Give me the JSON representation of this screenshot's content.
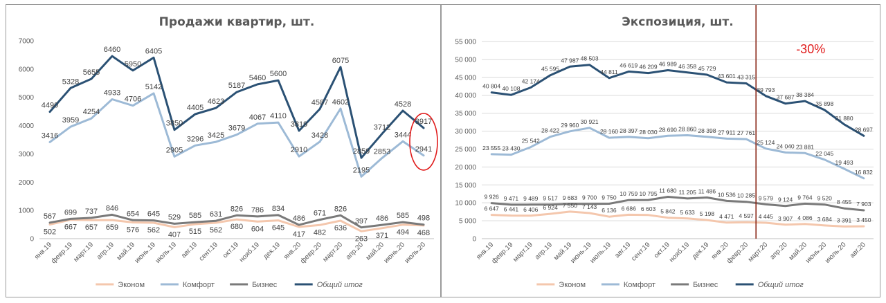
{
  "chart_data": [
    {
      "type": "line",
      "title": "Продажи квартир, шт.",
      "categories": [
        "янв.19",
        "февр.19",
        "март.19",
        "апр.19",
        "май.19",
        "июнь.19",
        "июль.19",
        "авг.19",
        "сент.19",
        "окт.19",
        "нояб.19",
        "дек.19",
        "янв.20",
        "февр.20",
        "март.20",
        "апр.20",
        "май.20",
        "июнь.20",
        "июль.20"
      ],
      "ylim": [
        0,
        7000
      ],
      "yticks": [
        "0",
        "1000",
        "2000",
        "3000",
        "4000",
        "5000",
        "6000",
        "7000"
      ],
      "grid": false,
      "legend_position": "bottom",
      "series": [
        {
          "name": "Эконом",
          "color": "#f4c7ad",
          "width": 3,
          "values": [
            502,
            667,
            657,
            659,
            576,
            562,
            407,
            515,
            562,
            680,
            604,
            645,
            417,
            482,
            636,
            263,
            371,
            494,
            468
          ],
          "labels": [
            "502",
            "667",
            "657",
            "659",
            "576",
            "562",
            "407",
            "515",
            "562",
            "680",
            "604",
            "645",
            "417",
            "482",
            "636",
            "263",
            "371",
            "494",
            "468"
          ],
          "label_pos": "below"
        },
        {
          "name": "Комфорт",
          "color": "#9dbad6",
          "width": 3,
          "values": [
            3416,
            3959,
            4254,
            4933,
            4706,
            5142,
            2905,
            3296,
            3425,
            3679,
            4067,
            4110,
            2910,
            3428,
            4602,
            2195,
            2853,
            3444,
            2941
          ],
          "labels": [
            "3416",
            "3959",
            "4254",
            "4933",
            "4706",
            "5142",
            "2905",
            "3296",
            "3425",
            "3679",
            "4067",
            "4110",
            "2910",
            "3428",
            "4602",
            "2195",
            "2853",
            "3444",
            "2941"
          ],
          "label_pos": "above"
        },
        {
          "name": "Бизнес",
          "color": "#7a7a7a",
          "width": 3,
          "values": [
            567,
            699,
            737,
            846,
            654,
            645,
            529,
            585,
            631,
            826,
            786,
            834,
            486,
            671,
            826,
            397,
            486,
            585,
            498
          ],
          "labels": [
            "567",
            "699",
            "737",
            "846",
            "654",
            "645",
            "529",
            "585",
            "631",
            "826",
            "786",
            "834",
            "486",
            "671",
            "826",
            "397",
            "486",
            "585",
            "498"
          ],
          "label_pos": "above"
        },
        {
          "name": "Общий итог",
          "color": "#2b5174",
          "width": 3,
          "values": [
            4490,
            5328,
            5655,
            6460,
            5950,
            6405,
            3850,
            4405,
            4623,
            5187,
            5460,
            5600,
            3819,
            4587,
            6075,
            2859,
            3712,
            4528,
            3917
          ],
          "labels": [
            "4490",
            "5328",
            "5655",
            "6460",
            "5950",
            "6405",
            "3850",
            "4405",
            "4623",
            "5187",
            "5460",
            "5600",
            "3819",
            "4587",
            "6075",
            "2859",
            "3712",
            "4528",
            "3917"
          ],
          "label_pos": "above"
        }
      ],
      "annotations": [
        {
          "shape": "ellipse",
          "category": "июль.20",
          "color": "#e01b1b"
        }
      ]
    },
    {
      "type": "line",
      "title": "Экспозиция, шт.",
      "categories": [
        "янв.19",
        "февр.19",
        "март.19",
        "апр.19",
        "май.19",
        "июнь.19",
        "июль.19",
        "авг.19",
        "сент.19",
        "окт.19",
        "нояб.19",
        "дек.19",
        "янв.20",
        "февр.20",
        "март.20",
        "апр.20",
        "май.20",
        "июнь.20",
        "июль.20",
        "авг.20"
      ],
      "ylim": [
        0,
        55000
      ],
      "yticks": [
        "0",
        "5 000",
        "10 000",
        "15 000",
        "20 000",
        "25 000",
        "30 000",
        "35 000",
        "40 000",
        "45 000",
        "50 000",
        "55 000"
      ],
      "grid": true,
      "legend_position": "bottom",
      "series": [
        {
          "name": "Эконом",
          "color": "#f4c7ad",
          "width": 3,
          "values": [
            6647,
            6441,
            6406,
            6924,
            7550,
            7143,
            6136,
            6686,
            6603,
            5842,
            5633,
            5198,
            4471,
            4597,
            4445,
            3907,
            4086,
            3684,
            3391,
            3450
          ],
          "labels": [
            "6 647",
            "6 441",
            "6 406",
            "6 924",
            "7 550",
            "7 143",
            "6 136",
            "6 686",
            "6 603",
            "5 842",
            "5 633",
            "5 198",
            "4 471",
            "4 597",
            "4 445",
            "3 907",
            "4 086",
            "3 684",
            "3 391",
            "3 450"
          ],
          "label_pos": "above"
        },
        {
          "name": "Комфорт",
          "color": "#9dbad6",
          "width": 3,
          "values": [
            23555,
            23430,
            25542,
            28422,
            29960,
            30921,
            28160,
            28397,
            28030,
            28690,
            28860,
            28398,
            27911,
            27761,
            25124,
            24040,
            23881,
            22045,
            19493,
            16832
          ],
          "labels": [
            "23 555",
            "23 430",
            "25 542",
            "28 422",
            "29 960",
            "30 921",
            "28 160",
            "28 397",
            "28 030",
            "28 690",
            "28 860",
            "28 398",
            "27 911",
            "27 761",
            "25 124",
            "24 040",
            "23 881",
            "22 045",
            "19 493",
            "16 832"
          ],
          "label_pos": "above"
        },
        {
          "name": "Бизнес",
          "color": "#7a7a7a",
          "width": 3,
          "values": [
            9926,
            9471,
            9489,
            9517,
            9683,
            9700,
            9750,
            10759,
            10795,
            11680,
            11205,
            11486,
            10536,
            10285,
            9579,
            9124,
            9764,
            9520,
            8455,
            7903
          ],
          "labels": [
            "9 926",
            "9 471",
            "9 489",
            "9 517",
            "9 683",
            "9 700",
            "9 750",
            "10 759",
            "10 795",
            "11 680",
            "11 205",
            "11 486",
            "10 536",
            "10 285",
            "9 579",
            "9 124",
            "9 764",
            "9 520",
            "8 455",
            "7 903"
          ],
          "label_pos": "above"
        },
        {
          "name": "Общий итог",
          "color": "#2b5174",
          "width": 3,
          "values": [
            40804,
            40108,
            42174,
            45595,
            47987,
            48503,
            44811,
            46619,
            46209,
            46989,
            46358,
            45729,
            43601,
            43315,
            39793,
            37687,
            38384,
            35898,
            31880,
            28697
          ],
          "labels": [
            "40 804",
            "40 108",
            "42 174",
            "45 595",
            "47 987",
            "48 503",
            "44 811",
            "46 619",
            "46 209",
            "46 989",
            "46 358",
            "45 729",
            "43 601",
            "43 315",
            "39 793",
            "37 687",
            "38 384",
            "35 898",
            "31 880",
            "28 697"
          ],
          "label_pos": "above"
        }
      ],
      "annotations": [
        {
          "shape": "vertical-line",
          "between": [
            "февр.20",
            "март.20"
          ],
          "color": "#8b2a1a"
        },
        {
          "shape": "text",
          "text": "-30%",
          "color": "#e01b1b"
        }
      ]
    }
  ]
}
